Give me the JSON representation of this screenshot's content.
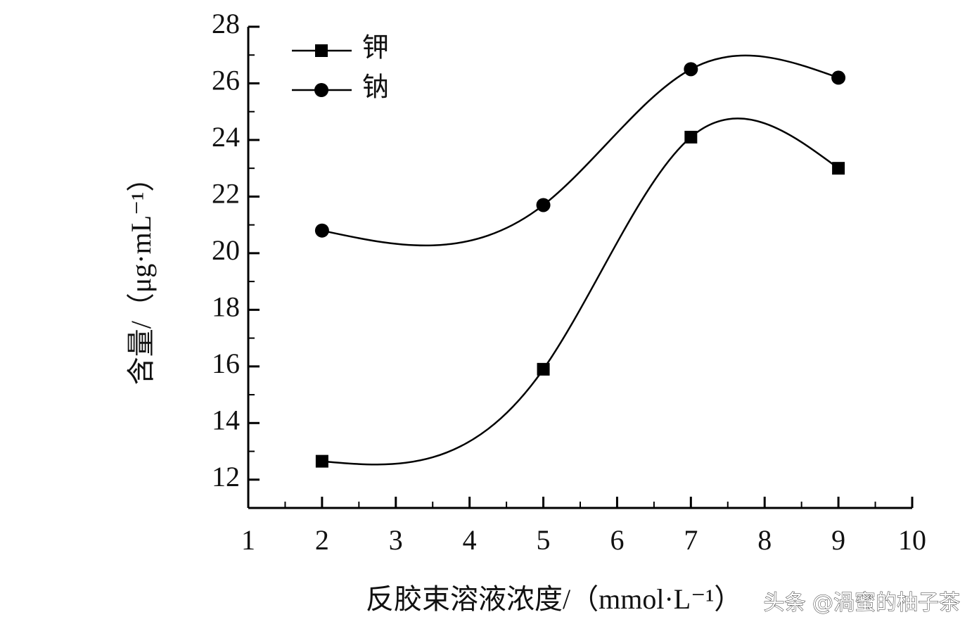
{
  "chart_data": {
    "type": "line",
    "xlabel": "反胶束溶液浓度/（mmol·L⁻¹）",
    "ylabel": "含量/（μg·mL⁻¹）",
    "watermark": "头条 @渦蜜的柚子茶",
    "x": [
      2,
      5,
      7,
      9
    ],
    "series": [
      {
        "name": "钾",
        "color": "#000000",
        "marker": "square",
        "values": [
          12.65,
          15.9,
          24.1,
          23.0
        ]
      },
      {
        "name": "钠",
        "color": "#000000",
        "marker": "circle",
        "values": [
          20.8,
          21.7,
          26.5,
          26.2
        ]
      }
    ],
    "xlim": [
      1,
      10
    ],
    "xticks": [
      1,
      2,
      3,
      4,
      5,
      6,
      7,
      8,
      9,
      10
    ],
    "ylim": [
      11,
      28
    ],
    "yticks": [
      12,
      14,
      16,
      18,
      20,
      22,
      24,
      26,
      28
    ],
    "legend": "upper left",
    "grid": false
  }
}
